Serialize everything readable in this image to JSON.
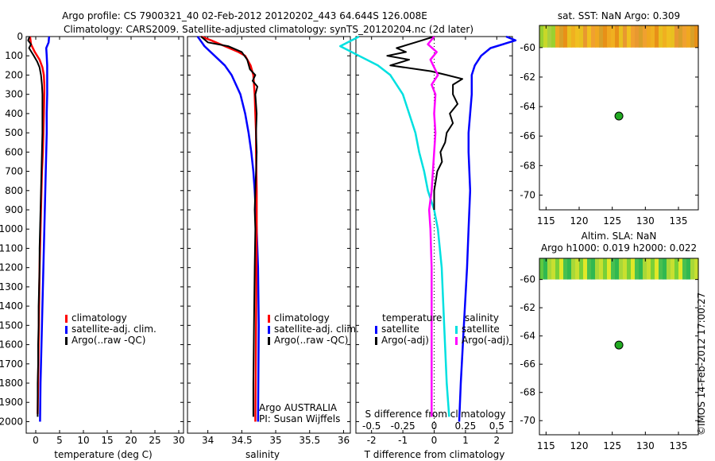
{
  "header": {
    "line1": "Argo profile: CS 7900321_40 02-Feb-2012 20120202_443 64.644S 126.008E",
    "line2": "Climatology: CARS2009. Satellite-adjusted climatology: synTS_20120204.nc (2d later)"
  },
  "depth_ticks": [
    "0",
    "100",
    "200",
    "300",
    "400",
    "500",
    "600",
    "700",
    "800",
    "900",
    "1000",
    "1100",
    "1200",
    "1300",
    "1400",
    "1500",
    "1600",
    "1700",
    "1800",
    "1900",
    "2000"
  ],
  "colors": {
    "climatology": "#ff0000",
    "satellite": "#0000ff",
    "argo": "#000000",
    "sat_t": "#00e0e0",
    "argo_s": "#ff00ff",
    "float": "#22aa22"
  },
  "chart_data": [
    {
      "type": "line",
      "panel": "temperature",
      "xlabel": "temperature (deg C)",
      "ylabel": "depth",
      "xlim": [
        -2,
        31
      ],
      "ylim": [
        2060,
        0
      ],
      "xticks": [
        "0",
        "5",
        "10",
        "15",
        "20",
        "25",
        "30"
      ],
      "legend": [
        "climatology",
        "satellite-adj. clim.",
        "Argo(..raw -QC)"
      ],
      "series": [
        {
          "name": "climatology",
          "depth": [
            0,
            40,
            80,
            120,
            160,
            200,
            250,
            300,
            400,
            500,
            600,
            700,
            800,
            1000,
            1200,
            1400,
            1600,
            1800,
            1960
          ],
          "values": [
            -1.2,
            -1.0,
            -0.2,
            0.8,
            1.4,
            1.7,
            1.8,
            1.8,
            1.7,
            1.6,
            1.5,
            1.3,
            1.2,
            1.0,
            0.8,
            0.7,
            0.6,
            0.5,
            0.4
          ]
        },
        {
          "name": "satellite-adj. clim.",
          "depth": [
            0,
            30,
            60,
            100,
            150,
            200,
            300,
            400,
            500,
            600,
            700,
            800,
            1000,
            1200,
            1400,
            1600,
            1800,
            2000
          ],
          "values": [
            2.8,
            2.7,
            2.2,
            2.3,
            2.4,
            2.4,
            2.4,
            2.3,
            2.3,
            2.2,
            2.1,
            2.0,
            1.8,
            1.6,
            1.4,
            1.2,
            1.0,
            0.9
          ]
        },
        {
          "name": "Argo(..raw -QC)",
          "depth": [
            0,
            20,
            40,
            60,
            80,
            100,
            130,
            160,
            200,
            250,
            300,
            400,
            500,
            600,
            700,
            800,
            900,
            1000,
            1100,
            1200,
            1300,
            1400,
            1500,
            1600,
            1700,
            1800,
            1900,
            1975
          ],
          "values": [
            -1.3,
            -1.6,
            -1.0,
            -1.4,
            -0.9,
            -0.4,
            0.3,
            0.8,
            1.1,
            1.3,
            1.4,
            1.4,
            1.4,
            1.3,
            1.2,
            1.1,
            1.0,
            0.9,
            0.8,
            0.8,
            0.7,
            0.6,
            0.6,
            0.5,
            0.5,
            0.4,
            0.4,
            0.4
          ]
        }
      ]
    },
    {
      "type": "line",
      "panel": "salinity",
      "xlabel": "salinity",
      "ylabel": "depth",
      "xlim": [
        33.7,
        36.1
      ],
      "ylim": [
        2060,
        0
      ],
      "xticks": [
        "34",
        "34.5",
        "35",
        "35.5",
        "36"
      ],
      "legend": [
        "climatology",
        "satellite-adj. clim.",
        "Argo(..raw -QC)"
      ],
      "annotation": [
        "Argo AUSTRALIA",
        "PI: Susan Wijffels"
      ],
      "series": [
        {
          "name": "climatology",
          "depth": [
            0,
            20,
            50,
            80,
            100,
            150,
            200,
            300,
            400,
            500,
            600,
            800,
            1000,
            1500,
            2000
          ],
          "values": [
            33.9,
            34.05,
            34.25,
            34.45,
            34.55,
            34.63,
            34.67,
            34.69,
            34.7,
            34.71,
            34.71,
            34.72,
            34.72,
            34.71,
            34.7
          ]
        },
        {
          "name": "satellite-adj. clim.",
          "depth": [
            0,
            50,
            100,
            150,
            200,
            300,
            400,
            500,
            600,
            700,
            800,
            1000,
            1200,
            1500,
            2000
          ],
          "values": [
            33.85,
            33.95,
            34.1,
            34.25,
            34.35,
            34.48,
            34.55,
            34.6,
            34.64,
            34.67,
            34.69,
            34.72,
            34.74,
            34.75,
            34.74
          ]
        },
        {
          "name": "Argo(..raw -QC)",
          "depth": [
            0,
            30,
            50,
            80,
            120,
            170,
            200,
            230,
            260,
            300,
            400,
            500,
            600,
            700,
            800,
            900,
            1000,
            1200,
            1500,
            1800,
            1975
          ],
          "values": [
            33.9,
            34.0,
            34.3,
            34.5,
            34.58,
            34.62,
            34.7,
            34.66,
            34.73,
            34.7,
            34.72,
            34.71,
            34.72,
            34.71,
            34.7,
            34.69,
            34.7,
            34.69,
            34.68,
            34.67,
            34.67
          ]
        }
      ]
    },
    {
      "type": "line",
      "panel": "difference",
      "xlabel": "T difference from climatology",
      "xlabel_top": "S difference from climatology",
      "xlim_T": [
        -2.5,
        2.5
      ],
      "xticks_T": [
        "-2",
        "-1",
        "0",
        "1",
        "2"
      ],
      "xticks_S": [
        "-0.5",
        "-0.25",
        "0",
        "0.25",
        "0.5"
      ],
      "legend_temperature_title": "temperature",
      "legend_salinity_title": "salinity",
      "legend_labels": {
        "t_sat": "satellite",
        "t_argo": "Argo(-adj)",
        "s_sat": "satellite",
        "s_argo": "Argo(-adj)"
      },
      "series": [
        {
          "name": "temperature satellite",
          "depth": [
            0,
            20,
            60,
            100,
            150,
            200,
            300,
            400,
            500,
            600,
            800,
            1000,
            1200,
            1500,
            1800,
            2000
          ],
          "values": [
            2.3,
            2.6,
            1.8,
            1.5,
            1.3,
            1.2,
            1.2,
            1.15,
            1.1,
            1.1,
            1.15,
            1.1,
            1.05,
            0.95,
            0.85,
            0.8
          ]
        },
        {
          "name": "temperature Argo(-adj)",
          "depth": [
            0,
            30,
            60,
            80,
            100,
            120,
            150,
            180,
            200,
            220,
            250,
            300,
            350,
            400,
            450,
            500,
            550,
            600,
            650,
            700,
            750,
            800,
            900
          ],
          "values": [
            0,
            -0.6,
            -1.2,
            -0.9,
            -1.5,
            -0.8,
            -1.4,
            -0.1,
            0.4,
            0.9,
            0.6,
            0.6,
            0.75,
            0.5,
            0.6,
            0.4,
            0.35,
            0.2,
            0.25,
            0.1,
            0.05,
            0.0,
            0.0
          ]
        },
        {
          "name": "salinity satellite",
          "depth": [
            0,
            50,
            100,
            150,
            200,
            300,
            400,
            500,
            600,
            700,
            800,
            900,
            1000,
            1200,
            1500,
            1800,
            1975
          ],
          "values": [
            -0.6,
            -0.75,
            -0.6,
            -0.45,
            -0.35,
            -0.25,
            -0.2,
            -0.15,
            -0.12,
            -0.08,
            -0.05,
            0.0,
            0.03,
            0.06,
            0.08,
            0.1,
            0.12
          ]
        },
        {
          "name": "salinity Argo(-adj)",
          "depth": [
            0,
            40,
            80,
            120,
            160,
            200,
            250,
            300,
            400,
            500,
            600,
            700,
            800,
            900,
            1000,
            1200,
            1500,
            1800,
            1975
          ],
          "values": [
            0,
            -0.05,
            0.02,
            -0.03,
            0.0,
            0.03,
            -0.02,
            0.01,
            0.0,
            0.01,
            0.0,
            -0.01,
            -0.02,
            -0.04,
            -0.03,
            -0.02,
            -0.02,
            -0.02,
            -0.02
          ]
        }
      ]
    },
    {
      "type": "heatmap",
      "panel": "sst_map",
      "title": "sat. SST: NaN Argo: 0.309",
      "xlim": [
        114,
        138
      ],
      "ylim": [
        -71,
        -58.5
      ],
      "xticks": [
        "115",
        "120",
        "125",
        "130",
        "135"
      ],
      "yticks": [
        "-60",
        "-62",
        "-64",
        "-66",
        "-68",
        "-70"
      ],
      "float_position": {
        "lon": 126.008,
        "lat": -64.644
      }
    },
    {
      "type": "heatmap",
      "panel": "sla_map",
      "title": "Altim. SLA: NaN",
      "subtitle": "Argo h1000: 0.019 h2000: 0.022",
      "xlim": [
        114,
        138
      ],
      "ylim": [
        -71,
        -58.5
      ],
      "xticks": [
        "115",
        "120",
        "125",
        "130",
        "135"
      ],
      "yticks": [
        "-60",
        "-62",
        "-64",
        "-66",
        "-68",
        "-70"
      ],
      "float_position": {
        "lon": 126.008,
        "lat": -64.644
      }
    }
  ],
  "credit": "©IMOS 14-Feb-2012 17:00:27"
}
